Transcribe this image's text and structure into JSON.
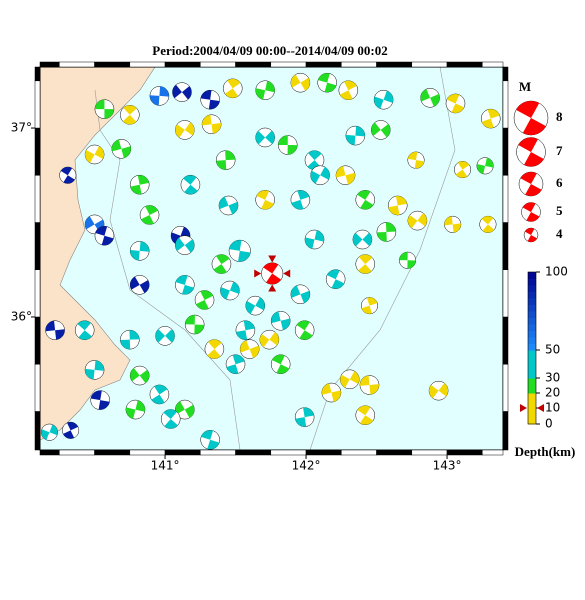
{
  "title": "Period:2004/04/09 00:00--2014/04/09 00:02",
  "map": {
    "lon_lim": [
      140.113,
      143.397
    ],
    "lat_lim": [
      35.296,
      37.323
    ],
    "lon_ticks": [
      {
        "value": 141,
        "label": "141°"
      },
      {
        "value": 142,
        "label": "142°"
      },
      {
        "value": 143,
        "label": "143°"
      }
    ],
    "lat_ticks": [
      {
        "value": 37,
        "label": "37°"
      },
      {
        "value": 36,
        "label": "36°"
      }
    ],
    "land_color": "#fae3c8",
    "sea_color": "#e2ffff"
  },
  "magnitude_legend": {
    "title": "M",
    "values": [
      8,
      7,
      6,
      5,
      4
    ]
  },
  "depth_scale": {
    "title": "Depth(km)",
    "ticks": [
      100,
      50,
      30,
      20,
      10,
      0
    ],
    "colors": [
      "#f2d800",
      "#f2d800",
      "#22dd22",
      "#00c8c8",
      "#1e90ff"
    ],
    "deep_color": "#000090"
  },
  "main_event": {
    "lon": 141.76,
    "lat": 36.23,
    "depth": 10,
    "mag": 5.5,
    "color": "#ff0000"
  },
  "events": [
    [
      140.57,
      37.1,
      25,
      5
    ],
    [
      140.75,
      37.07,
      5,
      5
    ],
    [
      140.96,
      37.17,
      60,
      5
    ],
    [
      141.12,
      37.19,
      90,
      5
    ],
    [
      141.32,
      37.15,
      90,
      5
    ],
    [
      141.48,
      37.21,
      5,
      5
    ],
    [
      141.71,
      37.2,
      25,
      5
    ],
    [
      141.96,
      37.24,
      5,
      5
    ],
    [
      142.15,
      37.24,
      25,
      5
    ],
    [
      142.3,
      37.2,
      5,
      5
    ],
    [
      142.55,
      37.15,
      40,
      5
    ],
    [
      142.88,
      37.16,
      25,
      5
    ],
    [
      143.06,
      37.13,
      5,
      5
    ],
    [
      143.31,
      37.05,
      5,
      5
    ],
    [
      140.5,
      36.86,
      5,
      5
    ],
    [
      140.69,
      36.89,
      25,
      5
    ],
    [
      140.31,
      36.75,
      90,
      4.5
    ],
    [
      140.82,
      36.7,
      25,
      5
    ],
    [
      141.14,
      36.99,
      5,
      5
    ],
    [
      141.33,
      37.02,
      5,
      5
    ],
    [
      141.18,
      36.7,
      40,
      5
    ],
    [
      141.43,
      36.83,
      25,
      5
    ],
    [
      141.71,
      36.95,
      40,
      5
    ],
    [
      141.87,
      36.91,
      25,
      5
    ],
    [
      142.06,
      36.83,
      40,
      5
    ],
    [
      142.35,
      36.96,
      40,
      5
    ],
    [
      142.53,
      36.99,
      25,
      5
    ],
    [
      142.78,
      36.83,
      5,
      4.5
    ],
    [
      143.11,
      36.78,
      5,
      4.5
    ],
    [
      143.27,
      36.8,
      25,
      4.5
    ],
    [
      140.5,
      36.49,
      60,
      5
    ],
    [
      140.57,
      36.43,
      90,
      5
    ],
    [
      140.89,
      36.54,
      25,
      5
    ],
    [
      141.11,
      36.43,
      90,
      5
    ],
    [
      141.45,
      36.59,
      40,
      5
    ],
    [
      141.71,
      36.62,
      5,
      5
    ],
    [
      141.96,
      36.62,
      40,
      5
    ],
    [
      142.1,
      36.75,
      40,
      5
    ],
    [
      142.28,
      36.75,
      5,
      5
    ],
    [
      142.42,
      36.62,
      25,
      5
    ],
    [
      142.65,
      36.59,
      5,
      5
    ],
    [
      142.79,
      36.51,
      5,
      5
    ],
    [
      143.04,
      36.49,
      5,
      4.5
    ],
    [
      143.29,
      36.49,
      5,
      4.5
    ],
    [
      142.57,
      36.45,
      25,
      5
    ],
    [
      142.4,
      36.41,
      40,
      5
    ],
    [
      142.72,
      36.3,
      25,
      4.5
    ],
    [
      142.42,
      36.28,
      5,
      5
    ],
    [
      140.82,
      36.35,
      40,
      5
    ],
    [
      141.14,
      36.38,
      40,
      5
    ],
    [
      141.53,
      36.35,
      40,
      5.5
    ],
    [
      141.4,
      36.28,
      25,
      5
    ],
    [
      142.06,
      36.41,
      40,
      5
    ],
    [
      140.82,
      36.17,
      90,
      5
    ],
    [
      141.14,
      36.17,
      40,
      5
    ],
    [
      141.28,
      36.09,
      25,
      5
    ],
    [
      141.46,
      36.14,
      40,
      5
    ],
    [
      141.96,
      36.12,
      40,
      5
    ],
    [
      142.21,
      36.2,
      40,
      5
    ],
    [
      142.45,
      36.06,
      5,
      4.5
    ],
    [
      141.64,
      36.06,
      40,
      5
    ],
    [
      141.82,
      35.98,
      40,
      5
    ],
    [
      141.99,
      35.93,
      25,
      5
    ],
    [
      141.57,
      35.93,
      40,
      5
    ],
    [
      141.74,
      35.88,
      5,
      5
    ],
    [
      140.22,
      35.93,
      90,
      5
    ],
    [
      140.43,
      35.93,
      40,
      5
    ],
    [
      140.75,
      35.88,
      40,
      5
    ],
    [
      141.0,
      35.9,
      40,
      5
    ],
    [
      141.21,
      35.96,
      25,
      5
    ],
    [
      141.35,
      35.83,
      5,
      5
    ],
    [
      140.5,
      35.72,
      40,
      5
    ],
    [
      140.82,
      35.69,
      25,
      5
    ],
    [
      140.54,
      35.56,
      90,
      5
    ],
    [
      140.96,
      35.59,
      40,
      5
    ],
    [
      140.79,
      35.51,
      25,
      5
    ],
    [
      141.14,
      35.51,
      25,
      5
    ],
    [
      141.32,
      35.35,
      40,
      5
    ],
    [
      140.33,
      35.4,
      90,
      4.5
    ],
    [
      140.18,
      35.39,
      40,
      4.5
    ],
    [
      141.6,
      35.83,
      5,
      5
    ],
    [
      141.82,
      35.75,
      25,
      5
    ],
    [
      141.5,
      35.75,
      40,
      5
    ],
    [
      142.31,
      35.67,
      5,
      5
    ],
    [
      142.18,
      35.6,
      5,
      5
    ],
    [
      142.42,
      35.48,
      5,
      5
    ],
    [
      141.99,
      35.47,
      40,
      5
    ],
    [
      142.94,
      35.61,
      5,
      5
    ],
    [
      142.45,
      35.64,
      5,
      5
    ],
    [
      141.04,
      35.46,
      40,
      5
    ]
  ]
}
